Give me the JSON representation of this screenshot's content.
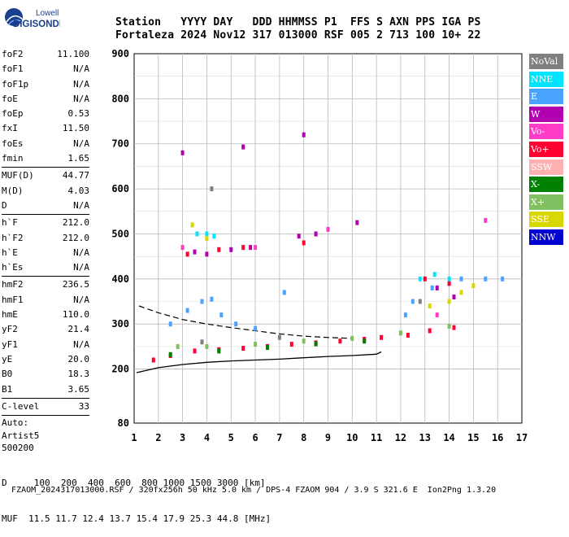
{
  "logo": {
    "line1": "Lowell",
    "line2": "DIGISONDE"
  },
  "header": {
    "labels": "Station   YYYY DAY   DDD HHMMSS P1  FFS S AXN PPS IGA PS",
    "values": "Fortaleza 2024 Nov12 317 013000 RSF 005 2 713 100 10+ 22"
  },
  "params": {
    "group1": [
      {
        "name": "foF2",
        "value": "11.100"
      },
      {
        "name": "foF1",
        "value": "N/A"
      },
      {
        "name": "foF1p",
        "value": "N/A"
      },
      {
        "name": "foE",
        "value": "N/A"
      },
      {
        "name": "foEp",
        "value": "0.53"
      },
      {
        "name": "fxI",
        "value": "11.50"
      },
      {
        "name": "foEs",
        "value": "N/A"
      },
      {
        "name": "fmin",
        "value": "1.65"
      }
    ],
    "group2": [
      {
        "name": "MUF(D)",
        "value": "44.77"
      },
      {
        "name": "M(D)",
        "value": "4.03"
      },
      {
        "name": "D",
        "value": "N/A"
      }
    ],
    "group3": [
      {
        "name": "h`F",
        "value": "212.0"
      },
      {
        "name": "h`F2",
        "value": "212.0"
      },
      {
        "name": "h`E",
        "value": "N/A"
      },
      {
        "name": "h`Es",
        "value": "N/A"
      }
    ],
    "group4": [
      {
        "name": "hmF2",
        "value": "236.5"
      },
      {
        "name": "hmF1",
        "value": "N/A"
      },
      {
        "name": "hmE",
        "value": "110.0"
      },
      {
        "name": "yF2",
        "value": "21.4"
      },
      {
        "name": "yF1",
        "value": "N/A"
      },
      {
        "name": "yE",
        "value": "20.0"
      },
      {
        "name": "B0",
        "value": "18.3"
      },
      {
        "name": "B1",
        "value": "3.65"
      }
    ],
    "clevel": {
      "name": "C-level",
      "value": "33"
    },
    "auto": [
      "Auto:",
      "Artist5",
      "500200"
    ]
  },
  "legend": [
    {
      "label": "NoVal",
      "color": "#808080"
    },
    {
      "label": "NNE",
      "color": "#00e5ff"
    },
    {
      "label": "E",
      "color": "#4aa3ff"
    },
    {
      "label": "W",
      "color": "#b000b0"
    },
    {
      "label": "Vo-",
      "color": "#ff3cc8"
    },
    {
      "label": "Vo+",
      "color": "#ff0030"
    },
    {
      "label": "SSW",
      "color": "#ffb0b0"
    },
    {
      "label": "X-",
      "color": "#008000"
    },
    {
      "label": "X+",
      "color": "#80c060"
    },
    {
      "label": "SSE",
      "color": "#d8d800"
    },
    {
      "label": "NNW",
      "color": "#0000d0"
    }
  ],
  "bottom": {
    "d_line": "D     100  200  400  600  800 1000 1500 3000 [km]",
    "muf_line": "MUF  11.5 11.7 12.4 13.7 15.4 17.9 25.3 44.8 [MHz]",
    "footer_left": "FZAOM_2024317013000.RSF / 320fx256h 50 kHz 5.0 km / DPS-4 FZAOM 904 / 3.9 S 321.6 E",
    "footer_right": "Ion2Png 1.3.20"
  },
  "chart_data": {
    "type": "scatter",
    "xlim": [
      1,
      17
    ],
    "ylim": [
      80,
      900
    ],
    "x_ticks": [
      "1",
      "2",
      "3",
      "4",
      "5",
      "6",
      "7",
      "8",
      "9",
      "10",
      "11",
      "12",
      "13",
      "14",
      "15",
      "16",
      "17"
    ],
    "y_ticks": [
      "80",
      "200",
      "300",
      "400",
      "500",
      "600",
      "700",
      "800",
      "900"
    ],
    "grid": true,
    "series": [
      {
        "name": "Vo+",
        "color": "#ff0030",
        "points": [
          [
            1.8,
            220
          ],
          [
            2.5,
            230
          ],
          [
            3.5,
            240
          ],
          [
            4.5,
            243
          ],
          [
            5.5,
            246
          ],
          [
            6.5,
            250
          ],
          [
            7.5,
            255
          ],
          [
            8.5,
            258
          ],
          [
            9.5,
            262
          ],
          [
            10.5,
            266
          ],
          [
            11.2,
            270
          ],
          [
            12.3,
            275
          ],
          [
            13.2,
            285
          ],
          [
            14.2,
            292
          ],
          [
            3.2,
            455
          ],
          [
            4.5,
            465
          ],
          [
            5.5,
            470
          ],
          [
            8,
            480
          ],
          [
            13,
            400
          ],
          [
            14,
            390
          ]
        ]
      },
      {
        "name": "E",
        "color": "#4aa3ff",
        "points": [
          [
            2.5,
            300
          ],
          [
            3.2,
            330
          ],
          [
            3.8,
            350
          ],
          [
            4.2,
            355
          ],
          [
            4.6,
            320
          ],
          [
            5.2,
            300
          ],
          [
            6,
            290
          ],
          [
            7.2,
            370
          ],
          [
            12.2,
            320
          ],
          [
            12.5,
            350
          ],
          [
            13.3,
            380
          ],
          [
            14.5,
            400
          ],
          [
            15.5,
            400
          ],
          [
            16.2,
            400
          ]
        ]
      },
      {
        "name": "W",
        "color": "#b000b0",
        "points": [
          [
            3.5,
            460
          ],
          [
            4,
            455
          ],
          [
            5,
            465
          ],
          [
            5.8,
            470
          ],
          [
            7.8,
            495
          ],
          [
            8.5,
            500
          ],
          [
            10.2,
            525
          ],
          [
            8,
            720
          ],
          [
            5.5,
            693
          ],
          [
            13.5,
            380
          ],
          [
            14.2,
            360
          ],
          [
            3,
            680
          ]
        ]
      },
      {
        "name": "NNE",
        "color": "#00e5ff",
        "points": [
          [
            3.6,
            500
          ],
          [
            4,
            500
          ],
          [
            4.3,
            495
          ],
          [
            12.8,
            400
          ],
          [
            13.4,
            410
          ],
          [
            14,
            400
          ]
        ]
      },
      {
        "name": "SSE",
        "color": "#d8d800",
        "points": [
          [
            3.4,
            520
          ],
          [
            4,
            490
          ],
          [
            13.2,
            340
          ],
          [
            14,
            350
          ],
          [
            14.5,
            370
          ],
          [
            15,
            385
          ]
        ]
      },
      {
        "name": "X+",
        "color": "#80c060",
        "points": [
          [
            2.8,
            250
          ],
          [
            4,
            250
          ],
          [
            6,
            255
          ],
          [
            8,
            262
          ],
          [
            10,
            268
          ],
          [
            12,
            280
          ],
          [
            14,
            295
          ]
        ]
      },
      {
        "name": "X-",
        "color": "#008000",
        "points": [
          [
            2.5,
            232
          ],
          [
            4.5,
            240
          ],
          [
            6.5,
            248
          ],
          [
            8.5,
            256
          ],
          [
            10.5,
            262
          ]
        ]
      },
      {
        "name": "Vo-",
        "color": "#ff3cc8",
        "points": [
          [
            3,
            470
          ],
          [
            6,
            470
          ],
          [
            9,
            510
          ],
          [
            13.5,
            320
          ],
          [
            15.5,
            530
          ]
        ]
      },
      {
        "name": "NoVal",
        "color": "#808080",
        "points": [
          [
            3.8,
            260
          ],
          [
            7,
            270
          ],
          [
            12.8,
            350
          ],
          [
            4.2,
            600
          ]
        ]
      }
    ],
    "profile_solid": [
      [
        1.1,
        192
      ],
      [
        2,
        203
      ],
      [
        3,
        210
      ],
      [
        4,
        215
      ],
      [
        5,
        218
      ],
      [
        6,
        220
      ],
      [
        7,
        222
      ],
      [
        8,
        225
      ],
      [
        9,
        228
      ],
      [
        10,
        230
      ],
      [
        11,
        233
      ],
      [
        11.2,
        238
      ]
    ],
    "profile_dashed": [
      [
        1.2,
        340
      ],
      [
        2,
        325
      ],
      [
        3,
        310
      ],
      [
        4,
        300
      ],
      [
        5,
        292
      ],
      [
        6,
        285
      ],
      [
        7,
        278
      ],
      [
        8,
        273
      ],
      [
        9,
        270
      ],
      [
        10,
        268
      ]
    ]
  }
}
